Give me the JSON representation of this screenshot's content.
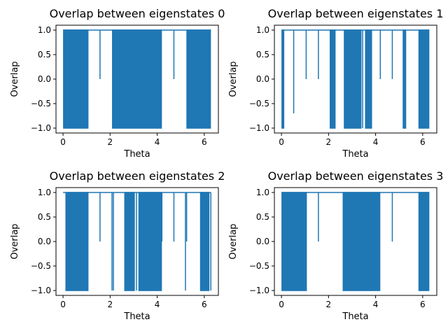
{
  "chart_data": [
    {
      "type": "line",
      "title": "Overlap between eigenstates 0",
      "xlabel": "Theta",
      "ylabel": "Overlap",
      "xlim": [
        -0.3,
        6.6
      ],
      "ylim": [
        -1.1,
        1.1
      ],
      "xticks": [
        0,
        2,
        4,
        6
      ],
      "xtick_labels": [
        "0",
        "2",
        "4",
        "6"
      ],
      "yticks": [
        -1.0,
        -0.5,
        0.0,
        0.5,
        1.0
      ],
      "ytick_labels": [
        "−1.0",
        "−0.5",
        "0.0",
        "0.5",
        "1.0"
      ],
      "series": [
        {
          "color": "#1f77b4",
          "baseline": 1.0,
          "theta_range": [
            0,
            6.283
          ],
          "oscillation_bands": [
            [
              0.0,
              1.08
            ],
            [
              2.08,
              4.2
            ],
            [
              5.24,
              6.283
            ]
          ],
          "band_range": [
            -1.0,
            1.0
          ],
          "spikes": [
            [
              1.57,
              0.0
            ],
            [
              4.71,
              0.0
            ]
          ]
        }
      ]
    },
    {
      "type": "line",
      "title": "Overlap between eigenstates 1",
      "xlabel": "Theta",
      "ylabel": "Overlap",
      "xlim": [
        -0.3,
        6.6
      ],
      "ylim": [
        -1.1,
        1.1
      ],
      "xticks": [
        0,
        2,
        4,
        6
      ],
      "xtick_labels": [
        "0",
        "2",
        "4",
        "6"
      ],
      "yticks": [
        -1.0,
        -0.5,
        0.0,
        0.5,
        1.0
      ],
      "ytick_labels": [
        "−1.0",
        "−0.5",
        "0.0",
        "0.5",
        "1.0"
      ],
      "series": [
        {
          "color": "#1f77b4",
          "baseline": 1.0,
          "theta_range": [
            0,
            6.283
          ],
          "oscillation_bands": [
            [
              0.0,
              0.12
            ],
            [
              2.05,
              2.3
            ],
            [
              2.65,
              3.4
            ],
            [
              3.55,
              3.85
            ],
            [
              5.15,
              5.3
            ],
            [
              5.82,
              6.283
            ]
          ],
          "band_range": [
            -1.0,
            1.0
          ],
          "spikes": [
            [
              0.52,
              -0.7
            ],
            [
              1.05,
              0.0
            ],
            [
              1.57,
              0.0
            ],
            [
              3.45,
              -1.0
            ],
            [
              3.75,
              0.7
            ],
            [
              4.2,
              0.0
            ],
            [
              4.71,
              0.0
            ]
          ]
        }
      ]
    },
    {
      "type": "line",
      "title": "Overlap between eigenstates 2",
      "xlabel": "Theta",
      "ylabel": "Overlap",
      "xlim": [
        -0.3,
        6.6
      ],
      "ylim": [
        -1.1,
        1.1
      ],
      "xticks": [
        0,
        2,
        4,
        6
      ],
      "xtick_labels": [
        "0",
        "2",
        "4",
        "6"
      ],
      "yticks": [
        -1.0,
        -0.5,
        0.0,
        0.5,
        1.0
      ],
      "ytick_labels": [
        "−1.0",
        "−0.5",
        "0.0",
        "0.5",
        "1.0"
      ],
      "series": [
        {
          "color": "#1f77b4",
          "baseline": 1.0,
          "theta_range": [
            0,
            6.283
          ],
          "oscillation_bands": [
            [
              0.1,
              1.08
            ],
            [
              2.6,
              3.05
            ],
            [
              3.2,
              4.2
            ],
            [
              5.82,
              6.22
            ]
          ],
          "band_range": [
            -1.0,
            1.0
          ],
          "spikes": [
            [
              1.05,
              0.0
            ],
            [
              1.57,
              0.0
            ],
            [
              2.08,
              -1.0
            ],
            [
              2.14,
              -1.0
            ],
            [
              3.12,
              -1.0
            ],
            [
              4.2,
              0.0
            ],
            [
              4.71,
              0.0
            ],
            [
              5.2,
              -1.0
            ],
            [
              5.25,
              0.0
            ],
            [
              6.28,
              -1.0
            ]
          ]
        }
      ]
    },
    {
      "type": "line",
      "title": "Overlap between eigenstates 3",
      "xlabel": "Theta",
      "ylabel": "Overlap",
      "xlim": [
        -0.3,
        6.6
      ],
      "ylim": [
        -1.1,
        1.1
      ],
      "xticks": [
        0,
        2,
        4,
        6
      ],
      "xtick_labels": [
        "0",
        "2",
        "4",
        "6"
      ],
      "yticks": [
        -1.0,
        -0.5,
        0.0,
        0.5,
        1.0
      ],
      "ytick_labels": [
        "−1.0",
        "−0.5",
        "0.0",
        "0.5",
        "1.0"
      ],
      "series": [
        {
          "color": "#1f77b4",
          "baseline": 1.0,
          "theta_range": [
            0,
            6.283
          ],
          "oscillation_bands": [
            [
              0.0,
              1.08
            ],
            [
              2.6,
              4.2
            ],
            [
              5.82,
              6.283
            ]
          ],
          "band_range": [
            -1.0,
            1.0
          ],
          "spikes": [
            [
              1.57,
              0.0
            ],
            [
              4.71,
              0.0
            ]
          ]
        }
      ]
    }
  ]
}
